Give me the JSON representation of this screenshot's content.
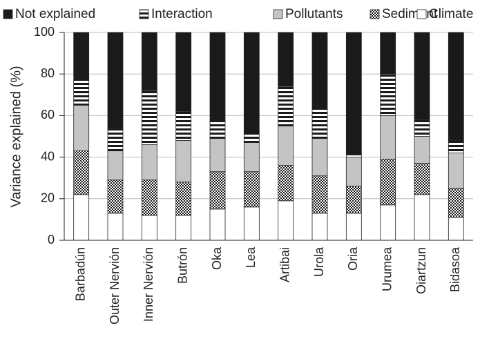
{
  "chart_data": {
    "type": "stacked-bar",
    "y_label": "Variance explained (%)",
    "categories": [
      "Barbadún",
      "Outer Nervión",
      "Inner Nervión",
      "Butrón",
      "Oka",
      "Lea",
      "Artibai",
      "Urola",
      "Oria",
      "Urumea",
      "Oiartzun",
      "Bidasoa"
    ],
    "series": [
      {
        "name": "Not explained",
        "color": "#1a1a1a",
        "values": [
          23,
          46,
          28,
          38,
          43,
          49,
          26,
          37,
          59,
          20,
          42,
          52
        ]
      },
      {
        "name": "Interaction",
        "color": "#1a1a1a",
        "pattern": "horizontal-stripes",
        "values": [
          12,
          11,
          26,
          14,
          8,
          4,
          19,
          14,
          1,
          20,
          8,
          6
        ]
      },
      {
        "name": "Pollutants",
        "color": "#c4c4c4",
        "values": [
          22,
          14,
          17,
          20,
          16,
          14,
          19,
          18,
          14,
          21,
          13,
          17
        ]
      },
      {
        "name": "Sediment",
        "color": "#1a1a1a",
        "pattern": "checker",
        "values": [
          21,
          16,
          17,
          16,
          18,
          17,
          17,
          18,
          13,
          22,
          15,
          14
        ]
      },
      {
        "name": "Climate",
        "color": "#ffffff",
        "values": [
          22,
          13,
          12,
          12,
          15,
          16,
          19,
          13,
          13,
          17,
          22,
          11
        ]
      }
    ],
    "ylim": [
      0,
      100
    ],
    "yticks": [
      0,
      20,
      40,
      60,
      80,
      100
    ],
    "grid": true
  }
}
